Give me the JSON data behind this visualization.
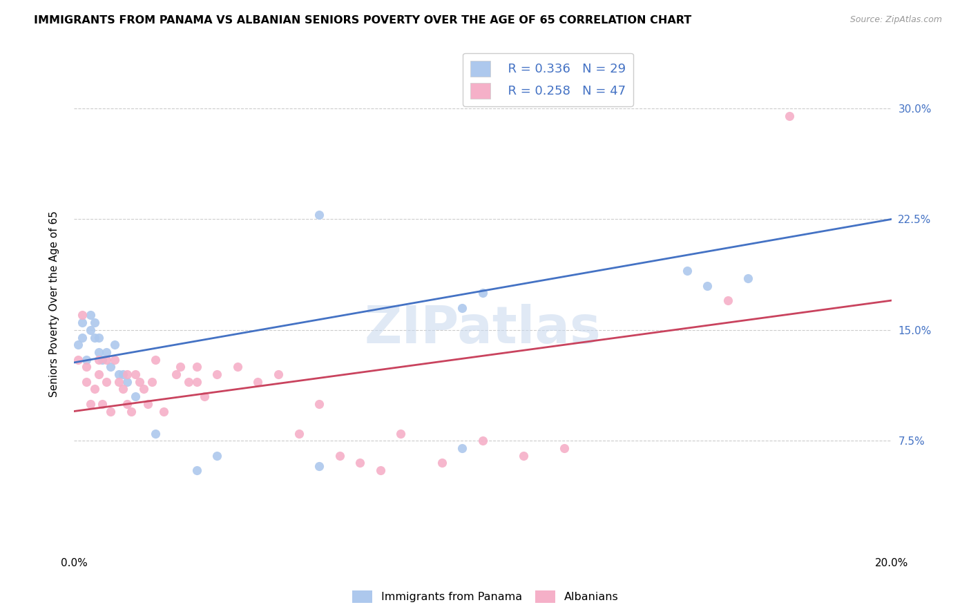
{
  "title": "IMMIGRANTS FROM PANAMA VS ALBANIAN SENIORS POVERTY OVER THE AGE OF 65 CORRELATION CHART",
  "source": "Source: ZipAtlas.com",
  "ylabel_label": "Seniors Poverty Over the Age of 65",
  "xlim": [
    0.0,
    0.2
  ],
  "ylim": [
    0.0,
    0.335
  ],
  "watermark": "ZIPatlas",
  "blue_R": "R = 0.336",
  "blue_N": "N = 29",
  "pink_R": "R = 0.258",
  "pink_N": "N = 47",
  "legend_label_blue": "Immigrants from Panama",
  "legend_label_pink": "Albanians",
  "blue_color": "#adc8ed",
  "pink_color": "#f5b0c8",
  "blue_line_color": "#4472c4",
  "pink_line_color": "#c9435e",
  "scatter_size": 90,
  "panama_x": [
    0.001,
    0.002,
    0.002,
    0.003,
    0.004,
    0.004,
    0.005,
    0.005,
    0.006,
    0.006,
    0.007,
    0.008,
    0.009,
    0.01,
    0.011,
    0.012,
    0.013,
    0.015,
    0.02,
    0.03,
    0.035,
    0.06,
    0.06,
    0.095,
    0.095,
    0.1,
    0.15,
    0.155,
    0.165
  ],
  "panama_y": [
    0.14,
    0.145,
    0.155,
    0.13,
    0.15,
    0.16,
    0.145,
    0.155,
    0.135,
    0.145,
    0.13,
    0.135,
    0.125,
    0.14,
    0.12,
    0.12,
    0.115,
    0.105,
    0.08,
    0.055,
    0.065,
    0.228,
    0.058,
    0.07,
    0.165,
    0.175,
    0.19,
    0.18,
    0.185
  ],
  "albanian_x": [
    0.001,
    0.002,
    0.003,
    0.003,
    0.004,
    0.005,
    0.006,
    0.006,
    0.007,
    0.008,
    0.008,
    0.009,
    0.01,
    0.011,
    0.012,
    0.013,
    0.013,
    0.014,
    0.015,
    0.016,
    0.017,
    0.018,
    0.019,
    0.02,
    0.022,
    0.025,
    0.026,
    0.028,
    0.03,
    0.03,
    0.032,
    0.035,
    0.04,
    0.045,
    0.05,
    0.055,
    0.06,
    0.065,
    0.07,
    0.075,
    0.08,
    0.09,
    0.1,
    0.11,
    0.12,
    0.16,
    0.175
  ],
  "albanian_y": [
    0.13,
    0.16,
    0.115,
    0.125,
    0.1,
    0.11,
    0.12,
    0.13,
    0.1,
    0.115,
    0.13,
    0.095,
    0.13,
    0.115,
    0.11,
    0.1,
    0.12,
    0.095,
    0.12,
    0.115,
    0.11,
    0.1,
    0.115,
    0.13,
    0.095,
    0.12,
    0.125,
    0.115,
    0.115,
    0.125,
    0.105,
    0.12,
    0.125,
    0.115,
    0.12,
    0.08,
    0.1,
    0.065,
    0.06,
    0.055,
    0.08,
    0.06,
    0.075,
    0.065,
    0.07,
    0.17,
    0.295
  ],
  "blue_trendline_x": [
    0.0,
    0.2
  ],
  "blue_trendline_y": [
    0.128,
    0.225
  ],
  "pink_trendline_y": [
    0.095,
    0.17
  ]
}
